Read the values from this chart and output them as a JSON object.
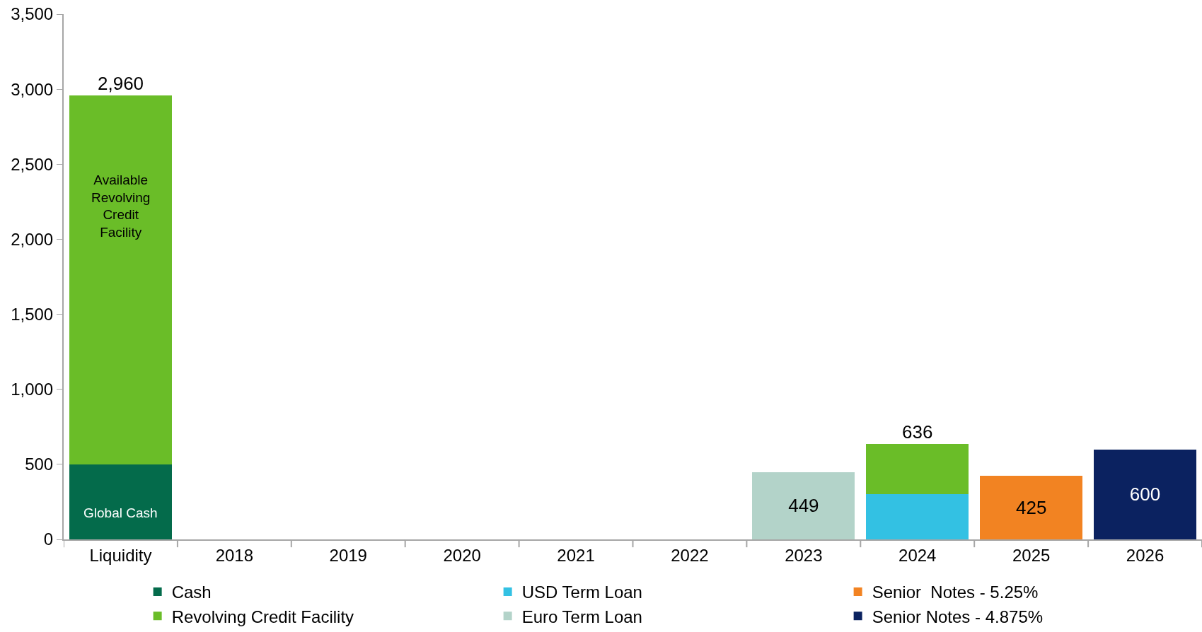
{
  "chart_data": {
    "type": "bar",
    "stacked": true,
    "categories": [
      "Liquidity",
      "2018",
      "2019",
      "2020",
      "2021",
      "2022",
      "2023",
      "2024",
      "2025",
      "2026"
    ],
    "series": [
      {
        "name": "Cash",
        "color": "#046b4b",
        "values": [
          500,
          null,
          null,
          null,
          null,
          null,
          null,
          null,
          null,
          null
        ]
      },
      {
        "name": "USD Term Loan",
        "color": "#33c1e3",
        "values": [
          null,
          null,
          null,
          null,
          null,
          null,
          null,
          300,
          null,
          null
        ]
      },
      {
        "name": "Senior  Notes - 5.25%",
        "color": "#f28322",
        "values": [
          null,
          null,
          null,
          null,
          null,
          null,
          null,
          null,
          425,
          null
        ],
        "value_labels": [
          null,
          null,
          null,
          null,
          null,
          null,
          null,
          null,
          "425",
          null
        ]
      },
      {
        "name": "Revolving Credit Facility",
        "color": "#6abd28",
        "values": [
          2460,
          null,
          null,
          null,
          null,
          null,
          null,
          336,
          null,
          null
        ]
      },
      {
        "name": "Euro Term Loan",
        "color": "#b3d3c9",
        "values": [
          null,
          null,
          null,
          null,
          null,
          null,
          449,
          null,
          null,
          null
        ],
        "value_labels": [
          null,
          null,
          null,
          null,
          null,
          null,
          "449",
          null,
          null,
          null
        ]
      },
      {
        "name": "Senior Notes - 4.875%",
        "color": "#0b2260",
        "values": [
          null,
          null,
          null,
          null,
          null,
          null,
          null,
          null,
          null,
          600
        ],
        "value_labels": [
          null,
          null,
          null,
          null,
          null,
          null,
          null,
          null,
          null,
          "600"
        ]
      }
    ],
    "totals": [
      "2,960",
      null,
      null,
      null,
      null,
      null,
      null,
      "636",
      null,
      null
    ],
    "annotations": [
      "Global Cash",
      "Available Revolving Credit Facility"
    ],
    "ylim": [
      0,
      3500
    ],
    "yticks": [
      0,
      {
        "value": 500,
        "label": "500"
      },
      {
        "value": 1000,
        "label": "1,000"
      },
      {
        "value": 1500,
        "label": "1,500"
      },
      {
        "value": 2000,
        "label": "2,000"
      },
      {
        "value": 2500,
        "label": "2,500"
      },
      {
        "value": 3000,
        "label": "3,000"
      },
      {
        "value": 3500,
        "label": "3,500"
      }
    ],
    "grid": false,
    "legend": "bottom"
  }
}
